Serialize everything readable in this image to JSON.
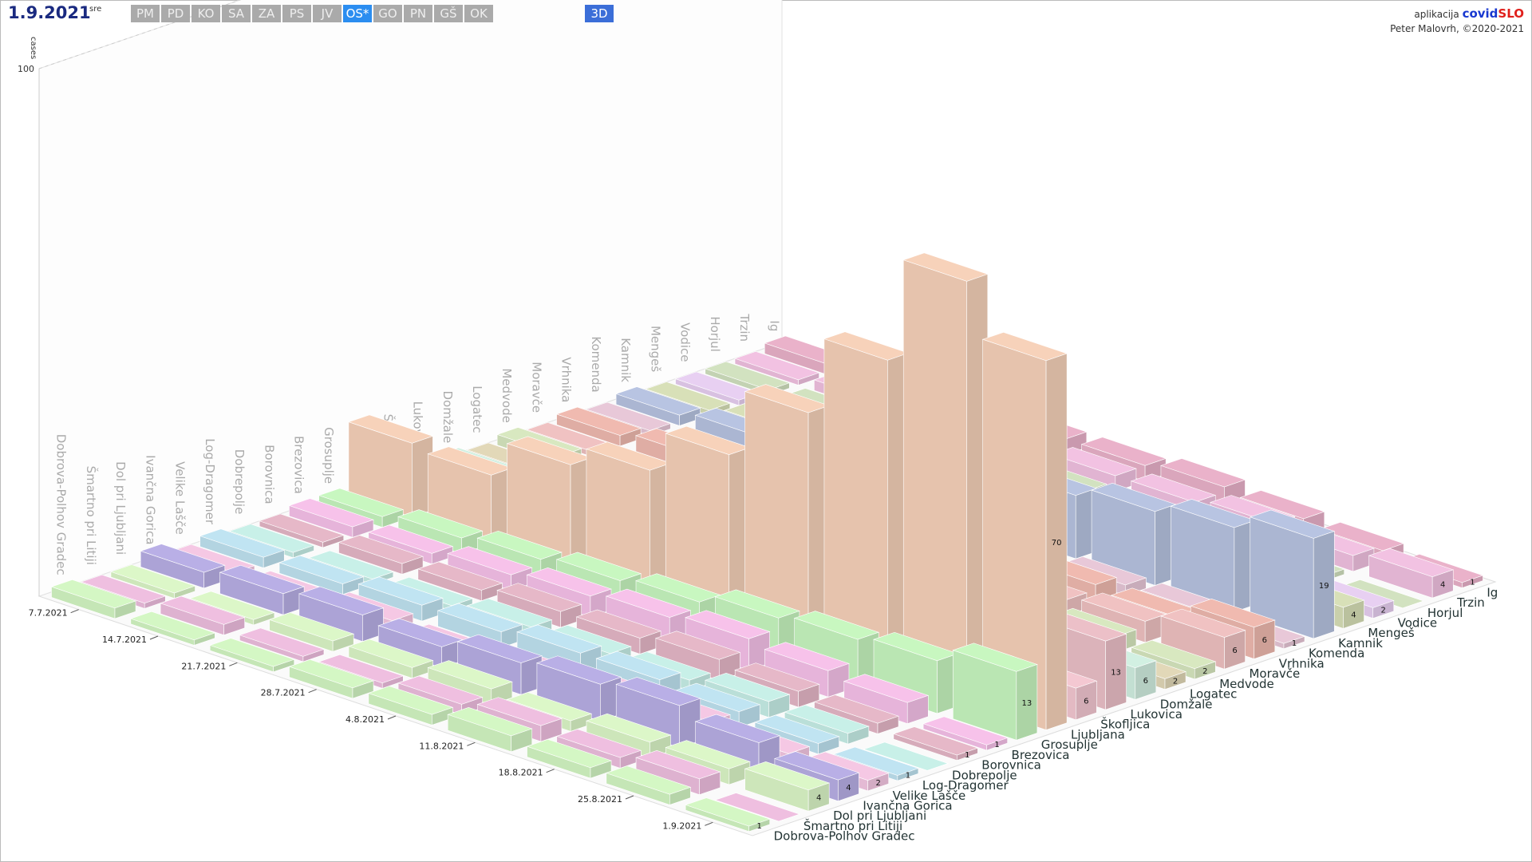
{
  "header": {
    "date": "1.9.2021",
    "weekday": "sre",
    "regions": [
      "PM",
      "PD",
      "KO",
      "SA",
      "ZA",
      "PS",
      "JV",
      "OS*",
      "GO",
      "PN",
      "GŠ",
      "OK"
    ],
    "active_region": 7,
    "mode": "3D",
    "app_prefix": "aplikacija",
    "app_name_1": "covid",
    "app_name_2": "SLO",
    "author": "Peter Malovrh, ©2020-2021"
  },
  "chart_data": {
    "type": "bar3d",
    "zlabel": "cases",
    "zlim": [
      0,
      100
    ],
    "zticks": [
      100
    ],
    "data_labels_last": true,
    "x": [
      "7.7.2021",
      "14.7.2021",
      "21.7.2021",
      "28.7.2021",
      "4.8.2021",
      "11.8.2021",
      "18.8.2021",
      "25.8.2021",
      "1.9.2021"
    ],
    "series": [
      {
        "name": "Dobrova-Polhov Gradec",
        "color": "#d4f7c4",
        "values": [
          2,
          1,
          1,
          2,
          2,
          3,
          2,
          2,
          1
        ]
      },
      {
        "name": "Šmartno pri Litiji",
        "color": "#efbfe0",
        "values": [
          1,
          2,
          1,
          1,
          2,
          3,
          2,
          3,
          0
        ]
      },
      {
        "name": "Dol pri Ljubljani",
        "color": "#dcf7c8",
        "values": [
          1,
          1,
          2,
          2,
          3,
          2,
          3,
          3,
          4
        ]
      },
      {
        "name": "Ivančna Gorica",
        "color": "#b9afe6",
        "values": [
          3,
          4,
          5,
          4,
          6,
          7,
          8,
          6,
          4
        ]
      },
      {
        "name": "Velike Lašče",
        "color": "#f5c8e4",
        "values": [
          1,
          1,
          2,
          1,
          2,
          3,
          3,
          2,
          2
        ]
      },
      {
        "name": "Log-Dragomer",
        "color": "#c0e4f2",
        "values": [
          2,
          2,
          3,
          3,
          4,
          4,
          3,
          2,
          1
        ]
      },
      {
        "name": "Dobrepolje",
        "color": "#c8f0e8",
        "values": [
          1,
          1,
          1,
          2,
          2,
          2,
          3,
          2,
          0
        ]
      },
      {
        "name": "Borovnica",
        "color": "#e6b8c8",
        "values": [
          1,
          2,
          2,
          3,
          3,
          4,
          3,
          2,
          1
        ]
      },
      {
        "name": "Brezovica",
        "color": "#f7c2ea",
        "values": [
          2,
          2,
          3,
          4,
          5,
          6,
          5,
          4,
          1
        ]
      },
      {
        "name": "Grosuplje",
        "color": "#c8f7c0",
        "values": [
          2,
          3,
          4,
          5,
          6,
          8,
          9,
          10,
          13
        ]
      },
      {
        "name": "Ljubljana",
        "color": "#f7d2ba",
        "values": [
          14,
          13,
          20,
          24,
          32,
          45,
          60,
          80,
          70
        ]
      },
      {
        "name": "Škofljica",
        "color": "#f4c8d2",
        "values": [
          1,
          2,
          2,
          3,
          3,
          4,
          4,
          5,
          6
        ]
      },
      {
        "name": "Lukovica",
        "color": "#ecc0c8",
        "values": [
          1,
          1,
          2,
          3,
          4,
          5,
          8,
          12,
          13
        ]
      },
      {
        "name": "Domžale",
        "color": "#d2f0e2",
        "values": [
          2,
          3,
          3,
          4,
          5,
          6,
          5,
          6,
          6
        ]
      },
      {
        "name": "Logatec",
        "color": "#e2d8b8",
        "values": [
          1,
          2,
          2,
          3,
          2,
          3,
          4,
          3,
          2
        ]
      },
      {
        "name": "Medvode",
        "color": "#d8e8c0",
        "values": [
          2,
          2,
          3,
          3,
          4,
          3,
          4,
          3,
          2
        ]
      },
      {
        "name": "Moravče",
        "color": "#f0c2c2",
        "values": [
          1,
          1,
          1,
          2,
          2,
          3,
          3,
          4,
          6
        ]
      },
      {
        "name": "Vrhnika",
        "color": "#f0bab0",
        "values": [
          2,
          3,
          2,
          3,
          4,
          5,
          4,
          3,
          6
        ]
      },
      {
        "name": "Komenda",
        "color": "#e8c8d8",
        "values": [
          1,
          1,
          2,
          2,
          2,
          3,
          2,
          2,
          1
        ]
      },
      {
        "name": "Kamnik",
        "color": "#b8c4e2",
        "values": [
          2,
          3,
          5,
          7,
          10,
          12,
          14,
          16,
          19
        ]
      },
      {
        "name": "Mengeš",
        "color": "#d8e0b8",
        "values": [
          1,
          2,
          2,
          3,
          3,
          4,
          3,
          4,
          4
        ]
      },
      {
        "name": "Vodice",
        "color": "#e8d0f2",
        "values": [
          1,
          1,
          2,
          2,
          2,
          3,
          2,
          2,
          2
        ]
      },
      {
        "name": "Horjul",
        "color": "#d2e2c0",
        "values": [
          1,
          1,
          1,
          2,
          2,
          2,
          2,
          1,
          0
        ]
      },
      {
        "name": "Trzin",
        "color": "#f2c2e2",
        "values": [
          1,
          2,
          2,
          3,
          3,
          3,
          4,
          3,
          4
        ]
      },
      {
        "name": "Ig",
        "color": "#eab2ca",
        "values": [
          2,
          2,
          3,
          3,
          3,
          4,
          3,
          2,
          1
        ]
      }
    ]
  }
}
